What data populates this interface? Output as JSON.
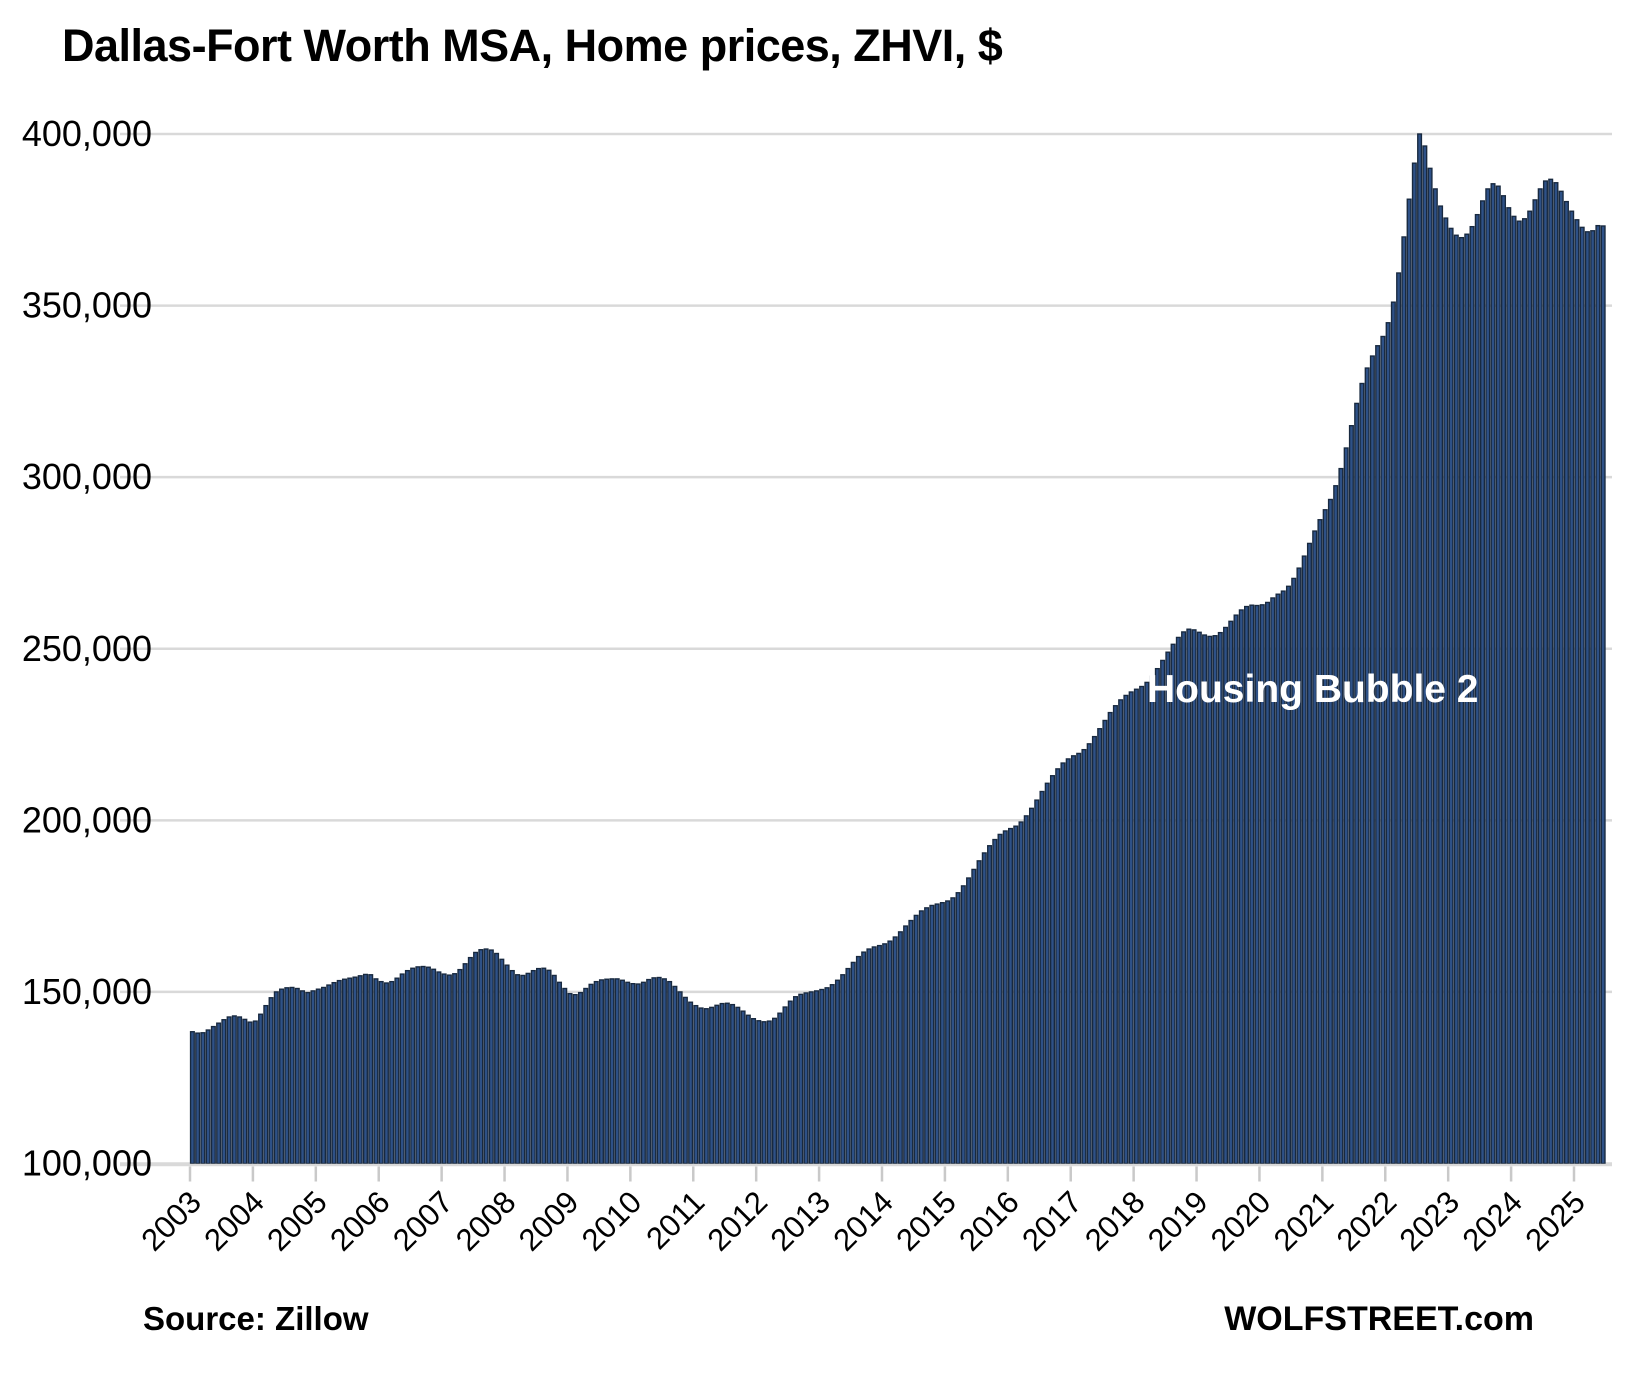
{
  "title": "Dallas-Fort Worth MSA, Home prices, ZHVI, $",
  "annotation": "Housing Bubble 2",
  "source_note": "Source: Zillow",
  "branding": "WOLFSTREET.com",
  "colors": {
    "background": "#ffffff",
    "bar_fill": "#2e5187",
    "bar_stroke": "#18293f",
    "gridline": "#d9d9d9",
    "tick": "#c9c9c9",
    "text": "#000000",
    "annotation_text": "#ffffff"
  },
  "chart_data": {
    "type": "bar",
    "title": "Dallas-Fort Worth MSA, Home prices, ZHVI, $",
    "series_name": "Zillow Home Value Index (ZHVI), Dallas-Fort Worth MSA, $",
    "frequency": "monthly",
    "start": "2003-01",
    "end": "2025-06",
    "unit": "USD",
    "ylim": [
      100000,
      400000
    ],
    "grid": "horizontal",
    "legend": "none",
    "annotation": "Housing Bubble 2",
    "y_ticks": [
      100000,
      150000,
      200000,
      250000,
      300000,
      350000,
      400000
    ],
    "y_tick_labels": [
      "100,000",
      "150,000",
      "200,000",
      "250,000",
      "300,000",
      "350,000",
      "400,000"
    ],
    "x_tick_labels": [
      "2003",
      "2004",
      "2005",
      "2006",
      "2007",
      "2008",
      "2009",
      "2010",
      "2011",
      "2012",
      "2013",
      "2014",
      "2015",
      "2016",
      "2017",
      "2018",
      "2019",
      "2020",
      "2021",
      "2022",
      "2023",
      "2024",
      "2025"
    ],
    "values": [
      138400,
      138000,
      138100,
      138900,
      139900,
      140900,
      141900,
      142700,
      143000,
      142700,
      142000,
      141200,
      141500,
      143500,
      146000,
      148300,
      150000,
      150800,
      151200,
      151300,
      151000,
      150300,
      149800,
      150300,
      150800,
      151300,
      152000,
      152700,
      153300,
      153700,
      154000,
      154300,
      154700,
      155100,
      155000,
      153800,
      153000,
      152600,
      153000,
      154000,
      155200,
      156200,
      156900,
      157300,
      157400,
      157200,
      156600,
      155800,
      155200,
      154900,
      155300,
      156500,
      158200,
      160000,
      161500,
      162300,
      162500,
      162200,
      161200,
      159500,
      157800,
      156200,
      155000,
      154800,
      155400,
      156200,
      156800,
      156900,
      156300,
      154800,
      152800,
      151000,
      149500,
      149200,
      149800,
      151000,
      152200,
      153000,
      153500,
      153700,
      153800,
      153800,
      153400,
      152800,
      152400,
      152300,
      152800,
      153600,
      154100,
      154200,
      153800,
      153000,
      151600,
      150000,
      148400,
      147000,
      146000,
      145300,
      145100,
      145500,
      146100,
      146600,
      146700,
      146300,
      145500,
      144400,
      143200,
      142200,
      141600,
      141300,
      141500,
      142300,
      143800,
      145600,
      147300,
      148600,
      149300,
      149700,
      150000,
      150300,
      150700,
      151200,
      152100,
      153400,
      155000,
      156800,
      158600,
      160300,
      161600,
      162500,
      163100,
      163500,
      164000,
      164800,
      166000,
      167500,
      169200,
      170800,
      172300,
      173600,
      174500,
      175200,
      175600,
      176000,
      176500,
      177400,
      178900,
      180900,
      183200,
      185700,
      188200,
      190500,
      192600,
      194400,
      195900,
      196900,
      197600,
      198300,
      199500,
      201300,
      203500,
      205900,
      208400,
      210800,
      213000,
      215000,
      216700,
      217900,
      218800,
      219500,
      220600,
      222300,
      224400,
      226700,
      229100,
      231400,
      233400,
      235100,
      236400,
      237400,
      238200,
      239000,
      240200,
      242000,
      244200,
      246600,
      249000,
      251300,
      253300,
      254900,
      255700,
      255500,
      254800,
      254000,
      253600,
      253800,
      254700,
      256200,
      258000,
      259800,
      261300,
      262300,
      262700,
      262600,
      262800,
      263500,
      264800,
      265900,
      266800,
      268200,
      270500,
      273500,
      277000,
      280700,
      284300,
      287600,
      290500,
      293500,
      297500,
      302500,
      308500,
      315000,
      321500,
      327300,
      331800,
      335300,
      338300,
      341000,
      345000,
      351000,
      359500,
      370000,
      381000,
      391500,
      400000,
      396500,
      390000,
      384000,
      379000,
      375500,
      372500,
      370500,
      369800,
      370800,
      373000,
      376500,
      380500,
      384000,
      385500,
      384800,
      382000,
      378500,
      376000,
      374600,
      375300,
      377500,
      380800,
      384000,
      386300,
      386800,
      385800,
      383300,
      380300,
      377500,
      375000,
      372800,
      371500,
      371800,
      373300,
      373200
    ]
  }
}
